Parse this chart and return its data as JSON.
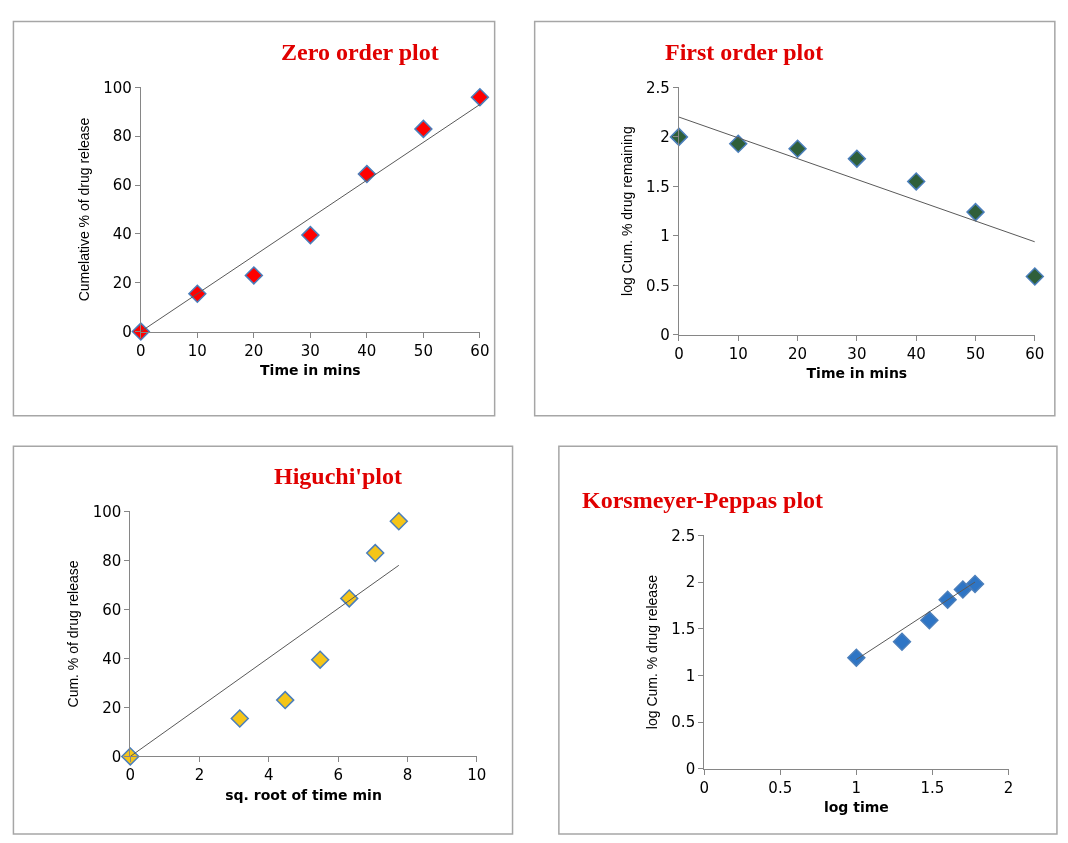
{
  "chart_data": [
    {
      "type": "scatter",
      "title": "Zero order plot",
      "xlabel": "Time in mins",
      "ylabel": "Cumelative % of drug release",
      "xlim": [
        0,
        60
      ],
      "xticks": [
        0,
        10,
        20,
        30,
        40,
        50,
        60
      ],
      "ylim": [
        0,
        100
      ],
      "yticks": [
        0,
        20,
        40,
        60,
        80,
        100
      ],
      "x": [
        0,
        10,
        20,
        30,
        40,
        50,
        60
      ],
      "series": [
        {
          "color": "#ff0000",
          "marker": "diamond",
          "values": [
            0,
            15.5,
            23,
            39.5,
            64.5,
            83,
            96
          ]
        },
        {
          "type": "line",
          "color": "#595959",
          "x": [
            0,
            60
          ],
          "values": [
            0,
            93
          ]
        }
      ]
    },
    {
      "type": "scatter",
      "title": "First order plot",
      "xlabel": "Time in mins",
      "ylabel": "log Cum. % drug remaining",
      "xlim": [
        0,
        60
      ],
      "xticks": [
        0,
        10,
        20,
        30,
        40,
        50,
        60
      ],
      "ylim": [
        0,
        2.5
      ],
      "yticks": [
        0,
        0.5,
        1,
        1.5,
        2,
        2.5
      ],
      "x": [
        0,
        10,
        20,
        30,
        40,
        50,
        60
      ],
      "series": [
        {
          "color": "#2f5f3a",
          "marker": "diamond",
          "values": [
            2.0,
            1.93,
            1.88,
            1.78,
            1.55,
            1.24,
            0.59
          ]
        },
        {
          "type": "line",
          "color": "#595959",
          "x": [
            0,
            60
          ],
          "values": [
            2.2,
            0.94
          ]
        }
      ]
    },
    {
      "type": "scatter",
      "title": "Higuchi'plot",
      "xlabel": "sq. root of time min",
      "ylabel": "Cum. % of drug release",
      "xlim": [
        0,
        10
      ],
      "xticks": [
        0,
        2,
        4,
        6,
        8,
        10
      ],
      "ylim": [
        0,
        100
      ],
      "yticks": [
        0,
        20,
        40,
        60,
        80,
        100
      ],
      "x": [
        0,
        3.16,
        4.47,
        5.48,
        6.32,
        7.07,
        7.75
      ],
      "series": [
        {
          "color": "#f5c518",
          "marker": "diamond",
          "values": [
            0,
            15.5,
            23,
            39.5,
            64.5,
            83,
            96
          ]
        },
        {
          "type": "line",
          "color": "#595959",
          "x": [
            0,
            7.75
          ],
          "values": [
            0,
            78
          ]
        }
      ]
    },
    {
      "type": "scatter",
      "title": "Korsmeyer-Peppas plot",
      "xlabel": "log time",
      "ylabel": "log Cum. % drug release",
      "xlim": [
        0,
        2
      ],
      "xticks": [
        0,
        0.5,
        1,
        1.5,
        2
      ],
      "ylim": [
        0,
        2.5
      ],
      "yticks": [
        0,
        0.5,
        1,
        1.5,
        2,
        2.5
      ],
      "x": [
        1,
        1.3,
        1.48,
        1.6,
        1.7,
        1.78
      ],
      "series": [
        {
          "color": "#2e75c5",
          "marker": "diamond",
          "values": [
            1.19,
            1.36,
            1.59,
            1.81,
            1.92,
            1.98
          ]
        },
        {
          "type": "line",
          "color": "#595959",
          "x": [
            1,
            1.78
          ],
          "values": [
            1.17,
            2.0
          ]
        }
      ]
    }
  ]
}
